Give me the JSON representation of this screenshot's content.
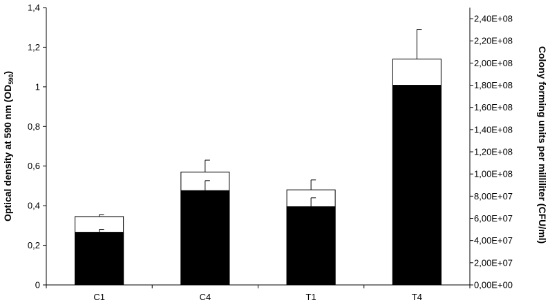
{
  "chart_data": {
    "type": "bar",
    "categories": [
      "C1",
      "C4",
      "T1",
      "T4"
    ],
    "y_left": {
      "label": "Optical density at 590 nm (OD",
      "label_subscript": "590",
      "label_close": ")",
      "ylim": [
        0,
        1.4
      ],
      "ticks": [
        0,
        0.2,
        0.4,
        0.6,
        0.8,
        1,
        1.2,
        1.4
      ],
      "tick_labels": [
        "0",
        "0,2",
        "0,4",
        "0,6",
        "0,8",
        "1",
        "1,2",
        "1,4"
      ]
    },
    "y_right": {
      "label": "Colony forming units per milliliter (CFU/ml)",
      "ylim": [
        0,
        250000000
      ],
      "ticks": [
        0,
        20000000,
        40000000,
        60000000,
        80000000,
        100000000,
        120000000,
        140000000,
        160000000,
        180000000,
        200000000,
        220000000,
        240000000
      ],
      "tick_labels": [
        "0,00E+00",
        "2,00E+07",
        "4,00E+07",
        "6,00E+07",
        "8,00E+07",
        "1,00E+08",
        "1,20E+08",
        "1,40E+08",
        "1,60E+08",
        "1,80E+08",
        "2,00E+08",
        "2,20E+08",
        "2,40E+08"
      ]
    },
    "series": [
      {
        "axis": "left",
        "fill": "#ffffff",
        "values": [
          0.345,
          0.57,
          0.48,
          1.14
        ],
        "errors": [
          0.01,
          0.06,
          0.05,
          0.15
        ]
      },
      {
        "axis": "right",
        "fill": "#000000",
        "values": [
          47500000,
          85000000,
          70500000,
          180000000
        ],
        "errors": [
          2500000,
          9000000,
          8000000,
          0
        ]
      }
    ]
  }
}
